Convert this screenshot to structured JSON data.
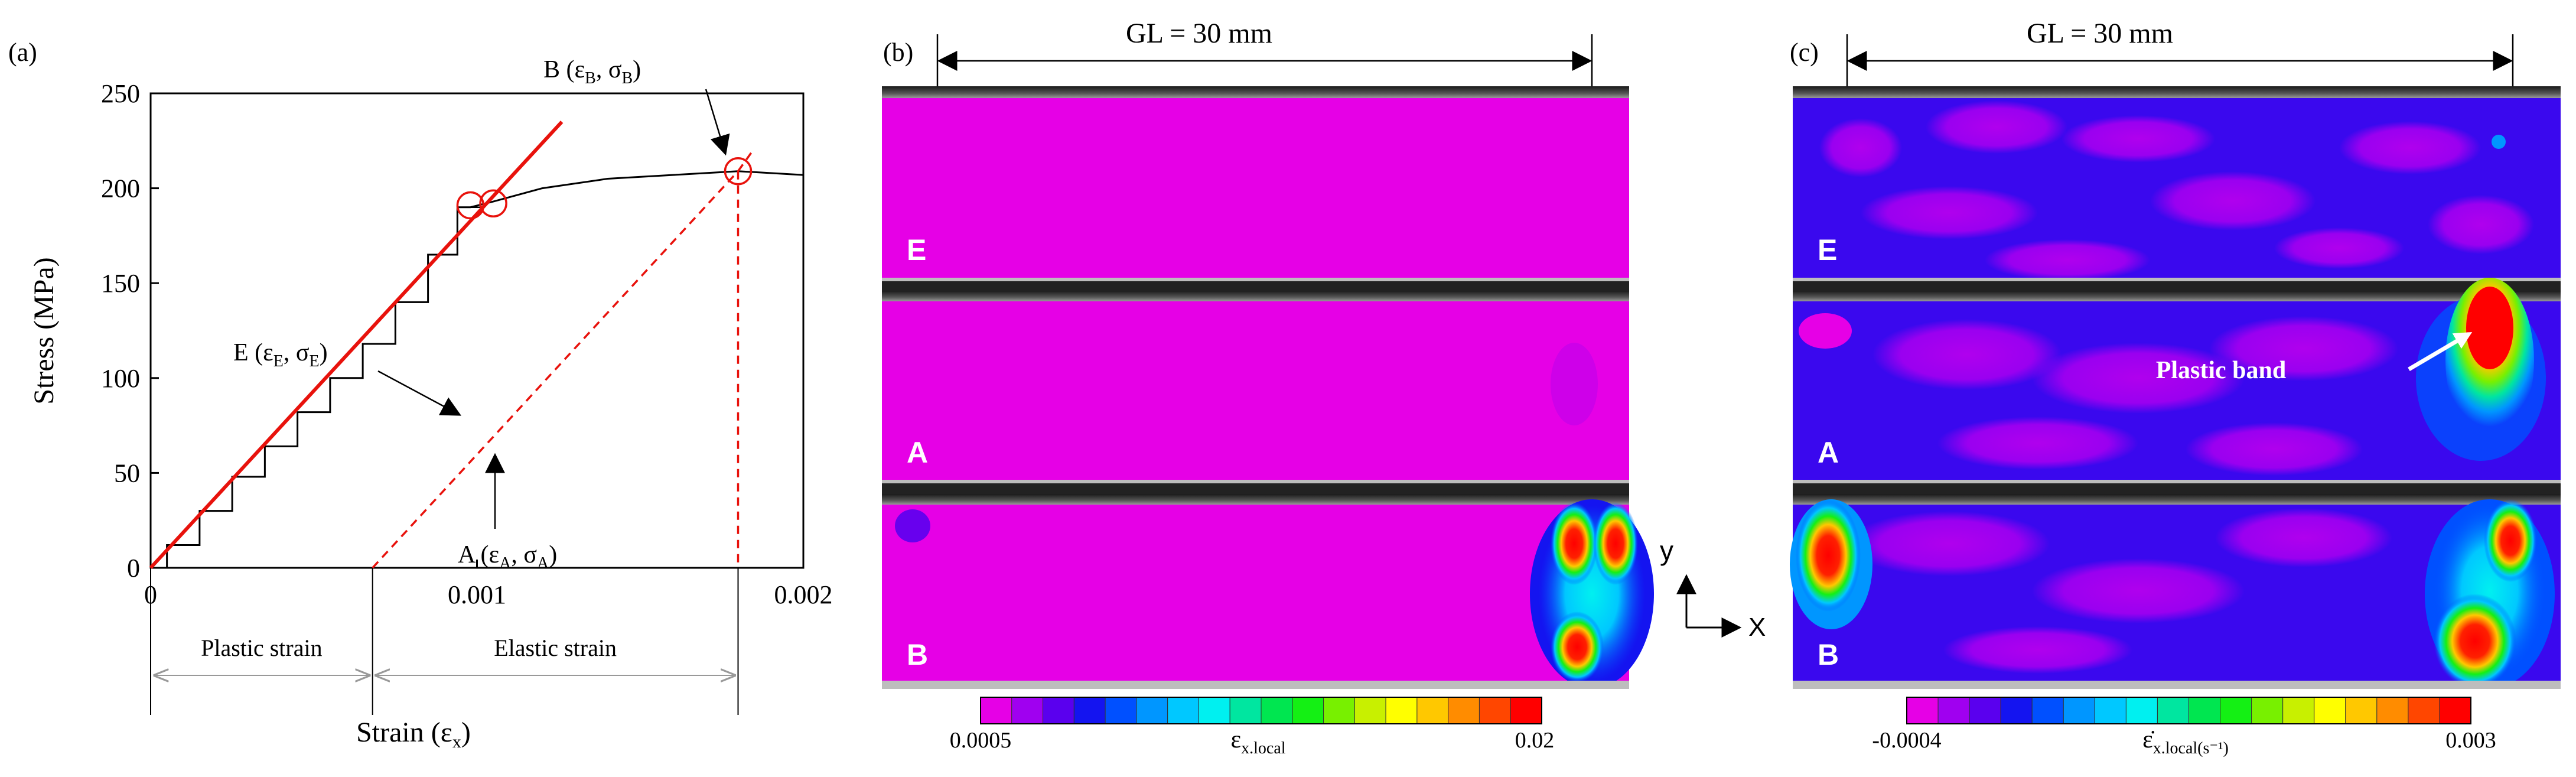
{
  "panels": {
    "a": {
      "tag": "(a)",
      "points": {
        "E": {
          "name": "E",
          "strain_sym": "ε",
          "strain_sub": "E",
          "stress_sym": "σ",
          "stress_sub": "E"
        },
        "B": {
          "name": "B",
          "strain_sym": "ε",
          "strain_sub": "B",
          "stress_sym": "σ",
          "stress_sub": "B"
        },
        "A": {
          "name": "A",
          "strain_sym": "ε",
          "strain_sub": "A",
          "stress_sym": "σ",
          "stress_sub": "A"
        }
      },
      "spans": {
        "plastic": "Plastic strain",
        "elastic": "Elastic strain"
      }
    },
    "b": {
      "tag": "(b)",
      "gauge_length": "GL = 30 mm",
      "strip_labels": [
        "E",
        "A",
        "B"
      ],
      "colorbar": {
        "min": "0.0005",
        "max": "0.02",
        "label_sym": "ε",
        "label_sub": "x.local"
      }
    },
    "c": {
      "tag": "(c)",
      "gauge_length": "GL = 30 mm",
      "strip_labels": [
        "E",
        "A",
        "B"
      ],
      "annotation": "Plastic band",
      "colorbar": {
        "min": "-0.0004",
        "max": "0.003",
        "label_sym": "ε̇",
        "label_sub": "x.local(s⁻¹)"
      }
    },
    "axes_icon": {
      "x": "X",
      "y": "y"
    }
  },
  "colormap": [
    "#e600e6",
    "#a000f0",
    "#5a00ee",
    "#1414f0",
    "#0050ff",
    "#0096ff",
    "#00c8ff",
    "#00f0f0",
    "#00e6a0",
    "#00e650",
    "#14f014",
    "#78f000",
    "#c8f000",
    "#ffff00",
    "#ffc800",
    "#ff8c00",
    "#ff4600",
    "#ff0000"
  ],
  "chart_data": {
    "type": "line",
    "xlabel": "Strain (εx)",
    "ylabel": "Stress (MPa)",
    "xlim": [
      0,
      0.002
    ],
    "ylim": [
      0,
      250
    ],
    "x_ticks": [
      "0",
      "0.001",
      "0.002"
    ],
    "y_ticks": [
      "0",
      "50",
      "100",
      "150",
      "200",
      "250"
    ],
    "x_tick_values": [
      0,
      0.001,
      0.002
    ],
    "y_tick_values": [
      0,
      50,
      100,
      150,
      200,
      250
    ],
    "grid": false,
    "series": [
      {
        "values": [
          [
            0,
            0
          ],
          [
            0.0001,
            12
          ],
          [
            0.0002,
            30
          ],
          [
            0.0003,
            48
          ],
          [
            0.0004,
            64
          ],
          [
            0.0005,
            82
          ],
          [
            0.0006,
            100
          ],
          [
            0.0007,
            118
          ],
          [
            0.0008,
            140
          ],
          [
            0.0009,
            165
          ],
          [
            0.00098,
            190
          ],
          [
            0.00105,
            193
          ],
          [
            0.0012,
            200
          ],
          [
            0.0014,
            205
          ],
          [
            0.0016,
            207
          ],
          [
            0.0018,
            209
          ],
          [
            0.002,
            207
          ]
        ]
      },
      {
        "values": [
          [
            0,
            0
          ],
          [
            0.00126,
            235
          ]
        ]
      },
      {
        "values": [
          [
            0.00068,
            0
          ],
          [
            0.0018,
            209
          ]
        ]
      }
    ],
    "points": [
      {
        "label": "E",
        "x": 0.00098,
        "y": 191
      },
      {
        "label": "A",
        "x": 0.00105,
        "y": 192
      },
      {
        "label": "B",
        "x": 0.0018,
        "y": 209
      }
    ],
    "plastic_strain": 0.00068
  }
}
